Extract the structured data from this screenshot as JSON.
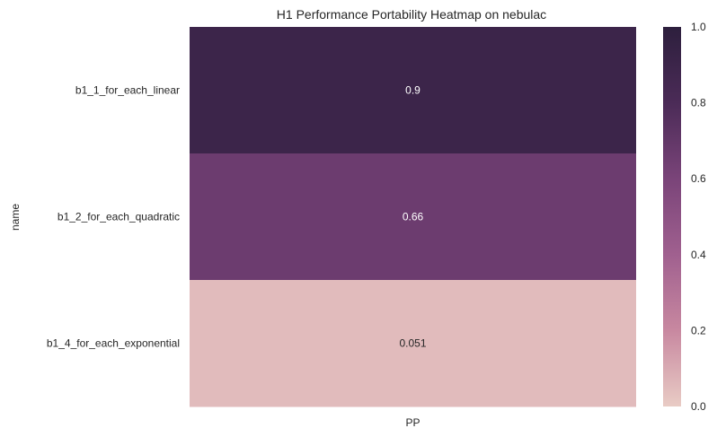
{
  "chart_data": {
    "type": "heatmap",
    "title": "H1 Performance Portability Heatmap on nebulac",
    "ylabel": "name",
    "xlabel": "",
    "x_categories": [
      "PP"
    ],
    "y_categories": [
      "b1_1_for_each_linear",
      "b1_2_for_each_quadratic",
      "b1_4_for_each_exponential"
    ],
    "values": [
      [
        0.9
      ],
      [
        0.66
      ],
      [
        0.051
      ]
    ],
    "value_labels": [
      "0.9",
      "0.66",
      "0.051"
    ],
    "colorbar": {
      "range": [
        0.0,
        1.0
      ],
      "ticks": [
        "0.0",
        "0.2",
        "0.4",
        "0.6",
        "0.8",
        "1.0"
      ],
      "colormap_stops": [
        "#e9ccc5",
        "#c888a0",
        "#a0608f",
        "#7a4479",
        "#4b2b57",
        "#2d1f3d"
      ]
    },
    "grid": false
  }
}
